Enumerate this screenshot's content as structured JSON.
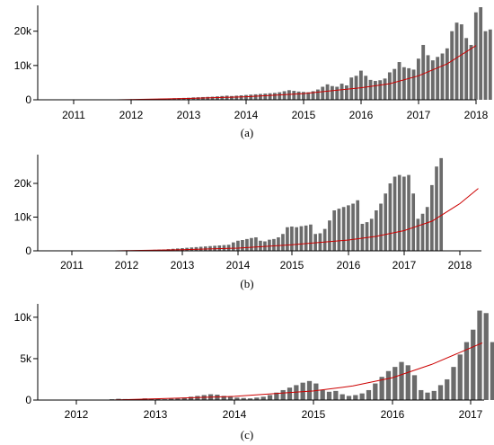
{
  "chart_data": [
    {
      "type": "bar",
      "caption": "(a)",
      "x_ticks": [
        "2011",
        "2012",
        "2013",
        "2014",
        "2015",
        "2016",
        "2017",
        "2018"
      ],
      "x_range": [
        2010.4,
        2018.0
      ],
      "y_ticks": [
        "0",
        "10k",
        "20k"
      ],
      "y_tick_values": [
        0,
        10000,
        20000
      ],
      "ylim": [
        0,
        27000
      ],
      "bar_color": "#6b6b6b",
      "trend_color": "#cc0000",
      "bars": {
        "start": 2011.75,
        "step": 0.0833,
        "values": [
          50,
          60,
          80,
          100,
          120,
          150,
          180,
          200,
          250,
          300,
          350,
          400,
          450,
          500,
          550,
          600,
          700,
          750,
          800,
          850,
          900,
          1000,
          1100,
          1200,
          1100,
          1200,
          1300,
          1400,
          1500,
          1600,
          1700,
          1800,
          1900,
          2000,
          2200,
          2500,
          2800,
          2600,
          2400,
          2300,
          2200,
          2500,
          3000,
          3800,
          4500,
          4000,
          3800,
          4700,
          4200,
          6500,
          7000,
          8500,
          7000,
          5800,
          5500,
          5700,
          6200,
          8000,
          9000,
          11000,
          9500,
          9200,
          8800,
          12000,
          16000,
          13000,
          11500,
          12500,
          13500,
          15000,
          20000,
          22500,
          22000,
          18000,
          16000,
          25500,
          27000,
          20000,
          20500
        ]
      },
      "trend": {
        "x": [
          2011.75,
          2013,
          2014,
          2015,
          2016,
          2016.5,
          2017,
          2017.5,
          2018
        ],
        "y": [
          0,
          400,
          900,
          1800,
          3500,
          4700,
          7000,
          10500,
          15800
        ]
      }
    },
    {
      "type": "bar",
      "caption": "(b)",
      "x_ticks": [
        "2011",
        "2012",
        "2013",
        "2014",
        "2015",
        "2016",
        "2017",
        "2018"
      ],
      "x_range": [
        2010.4,
        2018.33
      ],
      "y_ticks": [
        "0",
        "10k",
        "20k"
      ],
      "y_tick_values": [
        0,
        10000,
        20000
      ],
      "ylim": [
        0,
        28000
      ],
      "bar_color": "#6b6b6b",
      "trend_color": "#cc0000",
      "bars": {
        "start": 2011.75,
        "step": 0.0833,
        "values": [
          50,
          60,
          80,
          100,
          120,
          150,
          180,
          200,
          250,
          300,
          350,
          400,
          500,
          600,
          700,
          800,
          900,
          1000,
          1100,
          1200,
          1300,
          1400,
          1500,
          1600,
          1700,
          1800,
          2500,
          3000,
          3200,
          3500,
          3800,
          4000,
          3000,
          2800,
          3300,
          3500,
          4000,
          5000,
          7000,
          7200,
          7000,
          7300,
          7500,
          7800,
          5000,
          5200,
          6500,
          9000,
          12000,
          12500,
          13000,
          13500,
          14000,
          15000,
          8000,
          8500,
          9500,
          12000,
          14000,
          17000,
          20000,
          22000,
          22500,
          22000,
          22500,
          17000,
          9500,
          11000,
          13000,
          19500,
          25000,
          27500
        ]
      },
      "trend": {
        "x": [
          2011.75,
          2013,
          2014,
          2015,
          2016,
          2016.5,
          2017,
          2017.5,
          2018,
          2018.33
        ],
        "y": [
          0,
          350,
          800,
          1800,
          3200,
          4300,
          6000,
          8800,
          14000,
          18500
        ]
      }
    },
    {
      "type": "bar",
      "caption": "(c)",
      "x_ticks": [
        "2012",
        "2013",
        "2014",
        "2015",
        "2016",
        "2017"
      ],
      "x_range": [
        2011.4,
        2017.15
      ],
      "y_ticks": [
        "0",
        "5k",
        "10k"
      ],
      "y_tick_values": [
        0,
        5000,
        10000
      ],
      "ylim": [
        0,
        11400
      ],
      "bar_color": "#6b6b6b",
      "trend_color": "#cc0000",
      "bars": {
        "start": 2012.45,
        "step": 0.0833,
        "values": [
          100,
          150,
          120,
          100,
          80,
          200,
          150,
          120,
          100,
          150,
          200,
          300,
          400,
          500,
          600,
          700,
          650,
          500,
          400,
          300,
          250,
          200,
          300,
          400,
          600,
          900,
          1200,
          1500,
          1800,
          2100,
          2300,
          2000,
          1200,
          1000,
          1100,
          700,
          500,
          600,
          800,
          1200,
          2000,
          2800,
          3500,
          4000,
          4600,
          4200,
          3000,
          1200,
          900,
          1100,
          1800,
          2500,
          4000,
          5500,
          7000,
          8500,
          10800,
          10500,
          7000,
          3000,
          1800,
          2000,
          2300
        ]
      },
      "trend": {
        "x": [
          2012.45,
          2013,
          2014,
          2015,
          2015.5,
          2016,
          2016.5,
          2017.15
        ],
        "y": [
          0,
          150,
          450,
          1100,
          1700,
          2700,
          4300,
          6900
        ]
      }
    }
  ]
}
